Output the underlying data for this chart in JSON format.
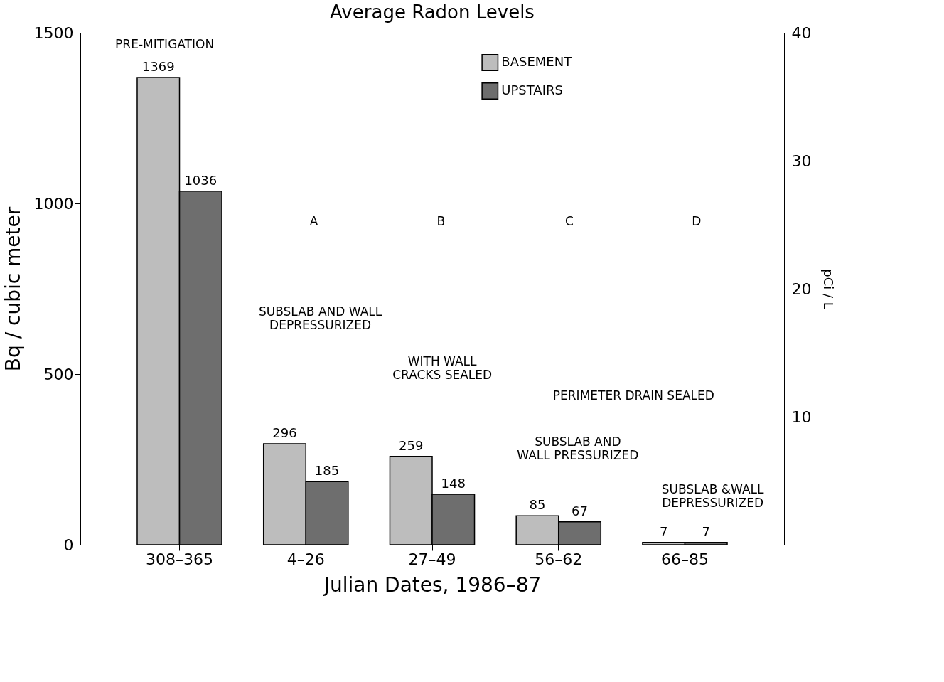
{
  "chart_data": {
    "type": "bar",
    "title": "Average Radon Levels",
    "xlabel": "Julian Dates, 1986–87",
    "ylabel": "Bq / cubic meter",
    "y2label": "pCi / L",
    "categories": [
      "308–365",
      "4–26",
      "27–49",
      "56–62",
      "66–85"
    ],
    "series": [
      {
        "name": "BASEMENT",
        "color": "#bdbdbd",
        "values": [
          1369,
          296,
          259,
          85,
          7
        ]
      },
      {
        "name": "UPSTAIRS",
        "color": "#6e6e6e",
        "values": [
          1036,
          185,
          148,
          67,
          7
        ]
      }
    ],
    "ylim": [
      0,
      1500
    ],
    "yticks": [
      0,
      500,
      1000,
      1500
    ],
    "y2lim": [
      0,
      40
    ],
    "y2ticks": [
      10,
      20,
      30,
      40
    ],
    "data_labels": true,
    "grid": false,
    "legend": "top",
    "annotations": [
      "PRE-MITIGATION",
      "A",
      "B",
      "C",
      "D",
      "SUBSLAB AND WALL\nDEPRESSURIZED",
      "WITH WALL\nCRACKS SEALED",
      "PERIMETER DRAIN SEALED",
      "SUBSLAB AND\nWALL PRESSURIZED",
      "SUBSLAB &WALL\nDEPRESSURIZED"
    ]
  }
}
